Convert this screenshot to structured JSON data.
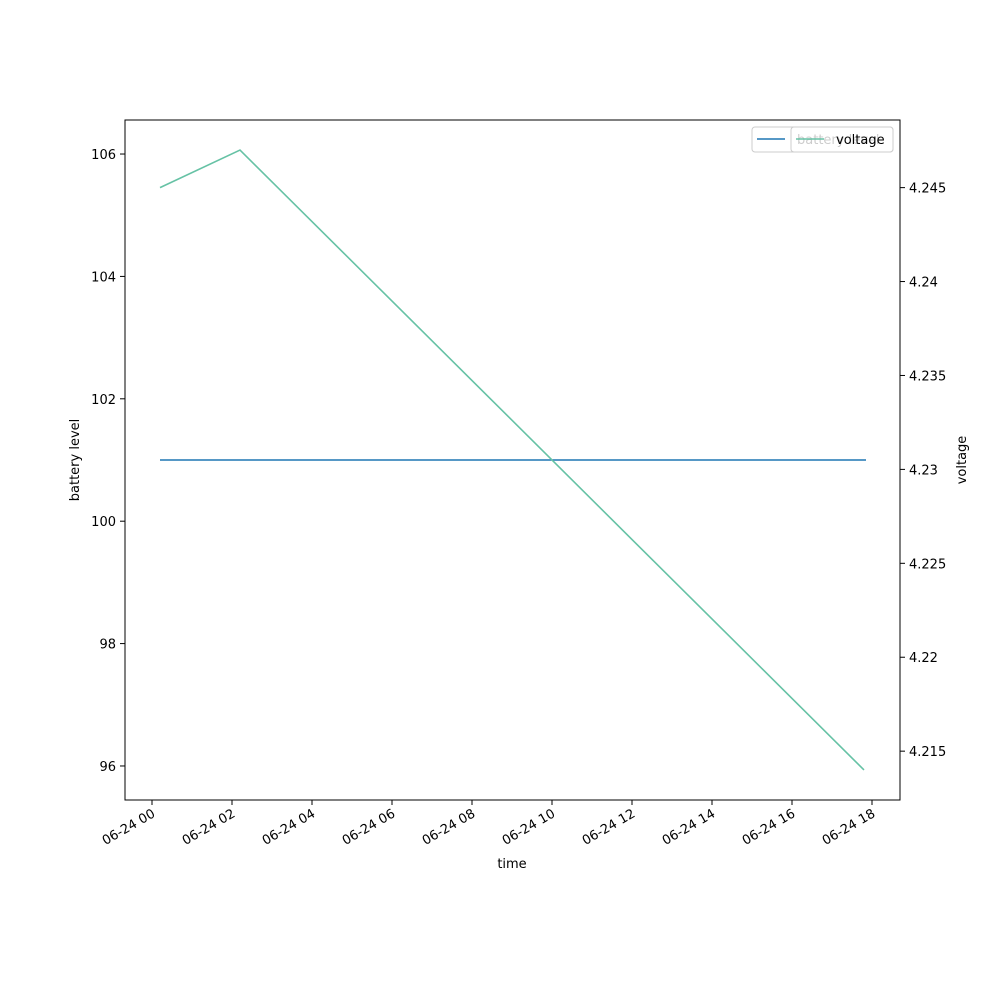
{
  "chart_data": {
    "type": "line",
    "xlabel": "time",
    "ylabel": "battery level",
    "y2label": "voltage",
    "xlim": [
      -0.675,
      18.7
    ],
    "xticks": [
      {
        "value": 0,
        "label": "06-24 00"
      },
      {
        "value": 2,
        "label": "06-24 02"
      },
      {
        "value": 4,
        "label": "06-24 04"
      },
      {
        "value": 6,
        "label": "06-24 06"
      },
      {
        "value": 8,
        "label": "06-24 08"
      },
      {
        "value": 10,
        "label": "06-24 10"
      },
      {
        "value": 12,
        "label": "06-24 12"
      },
      {
        "value": 14,
        "label": "06-24 14"
      },
      {
        "value": 16,
        "label": "06-24 16"
      },
      {
        "value": 18,
        "label": "06-24 18"
      }
    ],
    "ylim": [
      95.444,
      106.556
    ],
    "yticks": [
      96,
      98,
      100,
      102,
      104,
      106
    ],
    "y2lim": [
      4.2124,
      4.2486
    ],
    "y2ticks": [
      4.215,
      4.22,
      4.225,
      4.23,
      4.235,
      4.24,
      4.245
    ],
    "series": [
      {
        "name": "battery level",
        "color": "#1f77b4",
        "x": [
          0.2,
          17.85
        ],
        "values": [
          101,
          101
        ]
      },
      {
        "name": "voltage",
        "color": "#66c2a5",
        "axis": "y2",
        "x": [
          0.2,
          2.2,
          17.8
        ],
        "values": [
          4.245,
          4.247,
          4.214
        ]
      }
    ]
  }
}
